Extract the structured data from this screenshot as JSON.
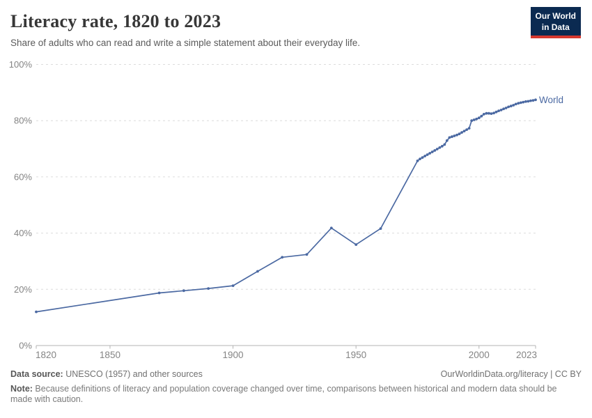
{
  "header": {
    "title": "Literacy rate, 1820 to 2023",
    "subtitle": "Share of adults who can read and write a simple statement about their everyday life.",
    "logo": {
      "line1": "Our World",
      "line2": "in Data",
      "bg_color": "#0b2a51",
      "bar_color": "#d6382f"
    }
  },
  "chart_data": {
    "type": "line",
    "title": "Literacy rate, 1820 to 2023",
    "xlabel": "",
    "ylabel": "",
    "xlim": [
      1820,
      2023
    ],
    "ylim": [
      0,
      100
    ],
    "grid": "horizontal-dashed",
    "legend_position": "line-end",
    "x_ticks": [
      1820,
      1850,
      1900,
      1950,
      2000,
      2023
    ],
    "y_ticks": [
      0,
      20,
      40,
      60,
      80,
      100
    ],
    "y_tick_suffix": "%",
    "axis_color": "#b3b3b3",
    "gridline_color": "#dcdcdc",
    "tick_label_color": "#848484",
    "series": [
      {
        "name": "World",
        "color": "#4b69a2",
        "points": [
          [
            1820,
            12.0
          ],
          [
            1870,
            18.7
          ],
          [
            1880,
            19.5
          ],
          [
            1890,
            20.3
          ],
          [
            1900,
            21.3
          ],
          [
            1910,
            26.4
          ],
          [
            1920,
            31.4
          ],
          [
            1930,
            32.4
          ],
          [
            1940,
            41.8
          ],
          [
            1950,
            35.9
          ],
          [
            1960,
            41.6
          ],
          [
            1975,
            65.7
          ],
          [
            1976,
            66.4
          ],
          [
            1977,
            66.9
          ],
          [
            1978,
            67.4
          ],
          [
            1979,
            67.9
          ],
          [
            1980,
            68.4
          ],
          [
            1981,
            68.9
          ],
          [
            1982,
            69.4
          ],
          [
            1983,
            69.9
          ],
          [
            1984,
            70.4
          ],
          [
            1985,
            70.9
          ],
          [
            1986,
            71.5
          ],
          [
            1987,
            72.9
          ],
          [
            1988,
            74.0
          ],
          [
            1989,
            74.3
          ],
          [
            1990,
            74.6
          ],
          [
            1991,
            74.9
          ],
          [
            1992,
            75.3
          ],
          [
            1993,
            75.8
          ],
          [
            1994,
            76.3
          ],
          [
            1995,
            76.8
          ],
          [
            1996,
            77.3
          ],
          [
            1997,
            80.0
          ],
          [
            1998,
            80.3
          ],
          [
            1999,
            80.6
          ],
          [
            2000,
            81.0
          ],
          [
            2001,
            81.6
          ],
          [
            2002,
            82.3
          ],
          [
            2003,
            82.6
          ],
          [
            2004,
            82.6
          ],
          [
            2005,
            82.5
          ],
          [
            2006,
            82.7
          ],
          [
            2007,
            83.1
          ],
          [
            2008,
            83.5
          ],
          [
            2009,
            83.8
          ],
          [
            2010,
            84.2
          ],
          [
            2011,
            84.5
          ],
          [
            2012,
            84.9
          ],
          [
            2013,
            85.2
          ],
          [
            2014,
            85.5
          ],
          [
            2015,
            85.9
          ],
          [
            2016,
            86.2
          ],
          [
            2017,
            86.4
          ],
          [
            2018,
            86.6
          ],
          [
            2019,
            86.8
          ],
          [
            2020,
            86.9
          ],
          [
            2021,
            87.1
          ],
          [
            2022,
            87.2
          ],
          [
            2023,
            87.4
          ]
        ]
      }
    ]
  },
  "footer": {
    "source_label": "Data source:",
    "source_text": " UNESCO (1957) and other sources",
    "link_text": "OurWorldinData.org/literacy | CC BY",
    "note_label": "Note:",
    "note_text": " Because definitions of literacy and population coverage changed over time, comparisons between historical and modern data should be made with caution."
  }
}
